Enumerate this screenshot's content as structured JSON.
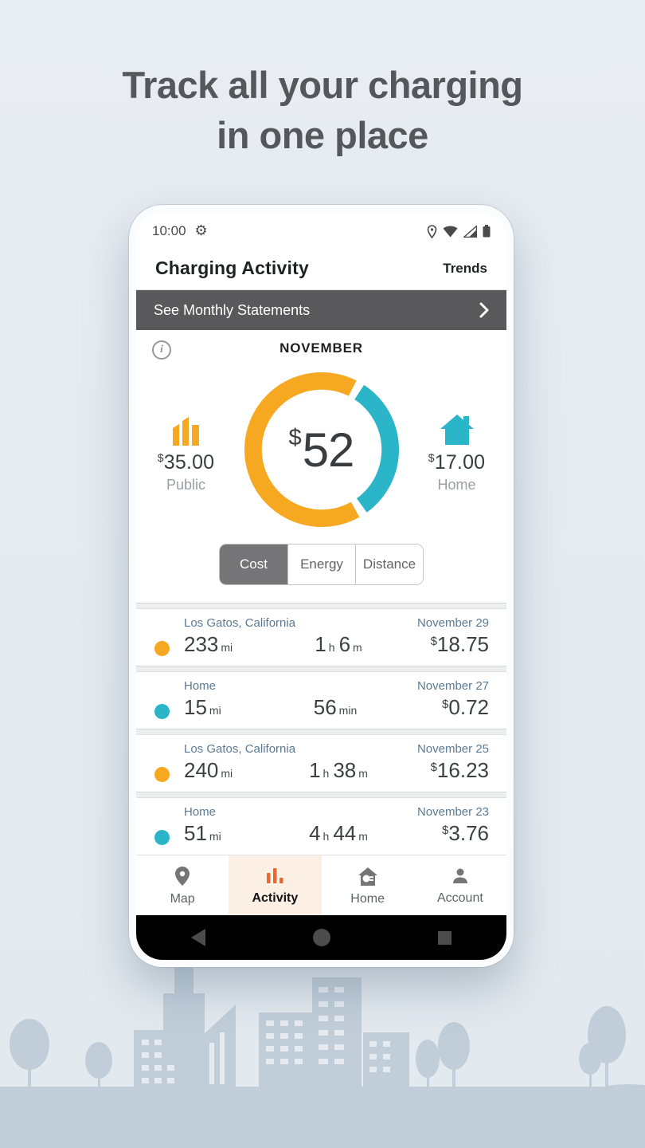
{
  "hero": {
    "title_line1": "Track all your charging",
    "title_line2": "in one place"
  },
  "statusbar": {
    "time": "10:00"
  },
  "app_header": {
    "title": "Charging Activity",
    "action": "Trends"
  },
  "banner": {
    "label": "See Monthly Statements"
  },
  "summary": {
    "month": "NOVEMBER",
    "total_currency": "$",
    "total_value": "52",
    "public_currency": "$",
    "public_value": "35.00",
    "public_label": "Public",
    "home_currency": "$",
    "home_value": "17.00",
    "home_label": "Home"
  },
  "chart_data": {
    "type": "pie",
    "subtype": "donut",
    "title": "NOVEMBER",
    "center_label": "$52",
    "total": 52,
    "unit": "USD",
    "slices": [
      {
        "name": "Public",
        "value": 35.0,
        "color": "#F6A821"
      },
      {
        "name": "Home",
        "value": 17.0,
        "color": "#2BB5C9"
      }
    ]
  },
  "tabs": {
    "items": [
      {
        "label": "Cost",
        "selected": true
      },
      {
        "label": "Energy",
        "selected": false
      },
      {
        "label": "Distance",
        "selected": false
      }
    ]
  },
  "sessions": [
    {
      "type": "public",
      "location": "Los Gatos, California",
      "date": "November 29",
      "distance_value": "233",
      "distance_unit": "mi",
      "d1_value": "1",
      "d1_unit": "h",
      "d2_value": "6",
      "d2_unit": "m",
      "cost_currency": "$",
      "cost_value": "18.75"
    },
    {
      "type": "home",
      "location": "Home",
      "date": "November 27",
      "distance_value": "15",
      "distance_unit": "mi",
      "d1_value": "56",
      "d1_unit": "min",
      "d2_value": "",
      "d2_unit": "",
      "cost_currency": "$",
      "cost_value": "0.72"
    },
    {
      "type": "public",
      "location": "Los Gatos, California",
      "date": "November 25",
      "distance_value": "240",
      "distance_unit": "mi",
      "d1_value": "1",
      "d1_unit": "h",
      "d2_value": "38",
      "d2_unit": "m",
      "cost_currency": "$",
      "cost_value": "16.23"
    },
    {
      "type": "home",
      "location": "Home",
      "date": "November 23",
      "distance_value": "51",
      "distance_unit": "mi",
      "d1_value": "4",
      "d1_unit": "h",
      "d2_value": "44",
      "d2_unit": "m",
      "cost_currency": "$",
      "cost_value": "3.76"
    }
  ],
  "nav": {
    "items": [
      {
        "label": "Map",
        "active": false
      },
      {
        "label": "Activity",
        "active": true
      },
      {
        "label": "Home",
        "active": false
      },
      {
        "label": "Account",
        "active": false
      }
    ]
  },
  "colors": {
    "public_orange": "#F6A821",
    "home_teal": "#2BB5C9",
    "activity_accent": "#E8692D",
    "banner_gray": "#59595B"
  },
  "icons": {
    "status_left": [
      "gear-icon"
    ],
    "status_right": [
      "location-icon",
      "wifi-icon",
      "signal-icon",
      "battery-icon"
    ],
    "banner": [
      "chevron-right-icon"
    ],
    "summary": [
      "info-icon",
      "public-bars-icon",
      "home-house-icon"
    ],
    "nav": [
      "map-pin-icon",
      "activity-bars-icon",
      "home-plug-icon",
      "account-person-icon"
    ],
    "android": [
      "back-icon",
      "home-circle-icon",
      "recents-square-icon"
    ]
  }
}
